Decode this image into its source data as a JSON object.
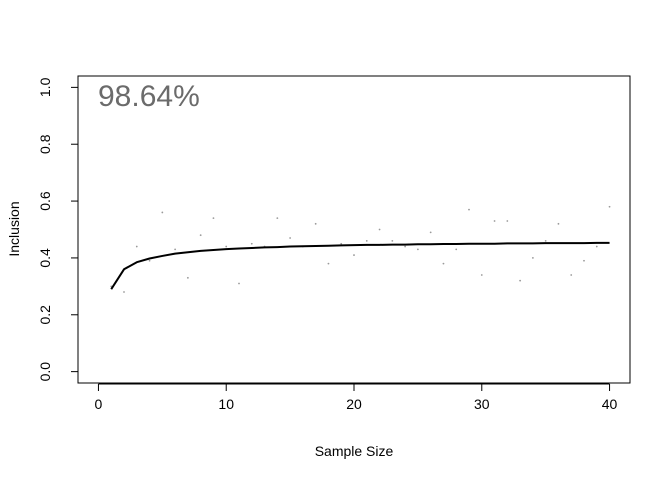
{
  "chart_data": {
    "type": "scatter",
    "xlabel": "Sample Size",
    "ylabel": "Inclusion",
    "annotation": "98.64%",
    "annotation_color": "#6b6b6b",
    "xlim": [
      -1.6,
      41.6
    ],
    "ylim": [
      -0.04,
      1.04
    ],
    "xticks": [
      0,
      10,
      20,
      30,
      40
    ],
    "yticks": [
      0.0,
      0.2,
      0.4,
      0.6,
      0.8,
      1.0
    ],
    "xtick_labels": [
      "0",
      "10",
      "20",
      "30",
      "40"
    ],
    "ytick_labels": [
      "0.0",
      "0.2",
      "0.4",
      "0.6",
      "0.8",
      "1.0"
    ],
    "grid": false,
    "series": [
      {
        "kind": "points",
        "color": "#9a9a9a",
        "x": [
          1,
          2,
          3,
          4,
          5,
          6,
          7,
          8,
          9,
          10,
          11,
          12,
          13,
          14,
          15,
          16,
          17,
          18,
          19,
          20,
          21,
          22,
          23,
          24,
          25,
          26,
          27,
          28,
          29,
          30,
          31,
          32,
          33,
          34,
          35,
          36,
          37,
          38,
          39,
          40
        ],
        "y": [
          0.3,
          0.28,
          0.44,
          0.39,
          0.56,
          0.43,
          0.33,
          0.48,
          0.54,
          0.44,
          0.31,
          0.45,
          0.44,
          0.54,
          0.47,
          0.44,
          0.52,
          0.38,
          0.45,
          0.41,
          0.46,
          0.5,
          0.46,
          0.44,
          0.43,
          0.49,
          0.38,
          0.43,
          0.57,
          0.34,
          0.53,
          0.53,
          0.32,
          0.4,
          0.46,
          0.52,
          0.34,
          0.39,
          0.44,
          0.58
        ]
      },
      {
        "kind": "line",
        "color": "#000000",
        "x": [
          1,
          2,
          3,
          4,
          5,
          6,
          7,
          8,
          9,
          10,
          11,
          12,
          13,
          14,
          15,
          16,
          17,
          18,
          19,
          20,
          21,
          22,
          23,
          24,
          25,
          26,
          27,
          28,
          29,
          30,
          31,
          32,
          33,
          34,
          35,
          36,
          37,
          38,
          39,
          40
        ],
        "y": [
          0.29,
          0.36,
          0.385,
          0.398,
          0.407,
          0.415,
          0.42,
          0.425,
          0.428,
          0.431,
          0.433,
          0.435,
          0.437,
          0.438,
          0.44,
          0.441,
          0.442,
          0.443,
          0.444,
          0.445,
          0.446,
          0.446,
          0.447,
          0.447,
          0.448,
          0.448,
          0.449,
          0.449,
          0.45,
          0.45,
          0.45,
          0.451,
          0.451,
          0.451,
          0.452,
          0.452,
          0.452,
          0.452,
          0.453,
          0.453
        ]
      }
    ]
  }
}
